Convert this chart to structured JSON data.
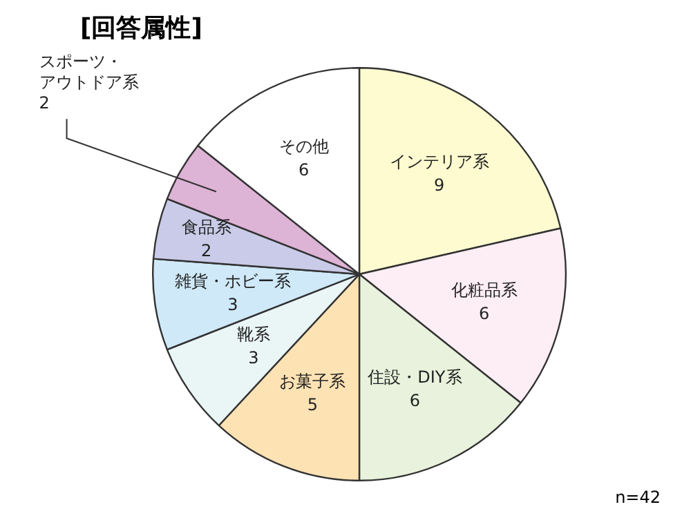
{
  "chart_data": {
    "type": "pie",
    "title": "[回答属性]",
    "categories": [
      "インテリア系",
      "化粧品系",
      "住設・DIY系",
      "お菓子系",
      "靴系",
      "雑貨・ホビー系",
      "食品系",
      "スポーツ・アウトドア系",
      "その他"
    ],
    "values": [
      9,
      6,
      6,
      5,
      3,
      3,
      2,
      2,
      6
    ],
    "colors": [
      "#fffbd0",
      "#fdeef5",
      "#e8f2dc",
      "#fde2b4",
      "#eaf5f5",
      "#cfe9f8",
      "#c9cbe8",
      "#ddb3d6",
      "#ffffff"
    ],
    "data_labels": true,
    "annotations": [
      "n=42"
    ]
  }
}
